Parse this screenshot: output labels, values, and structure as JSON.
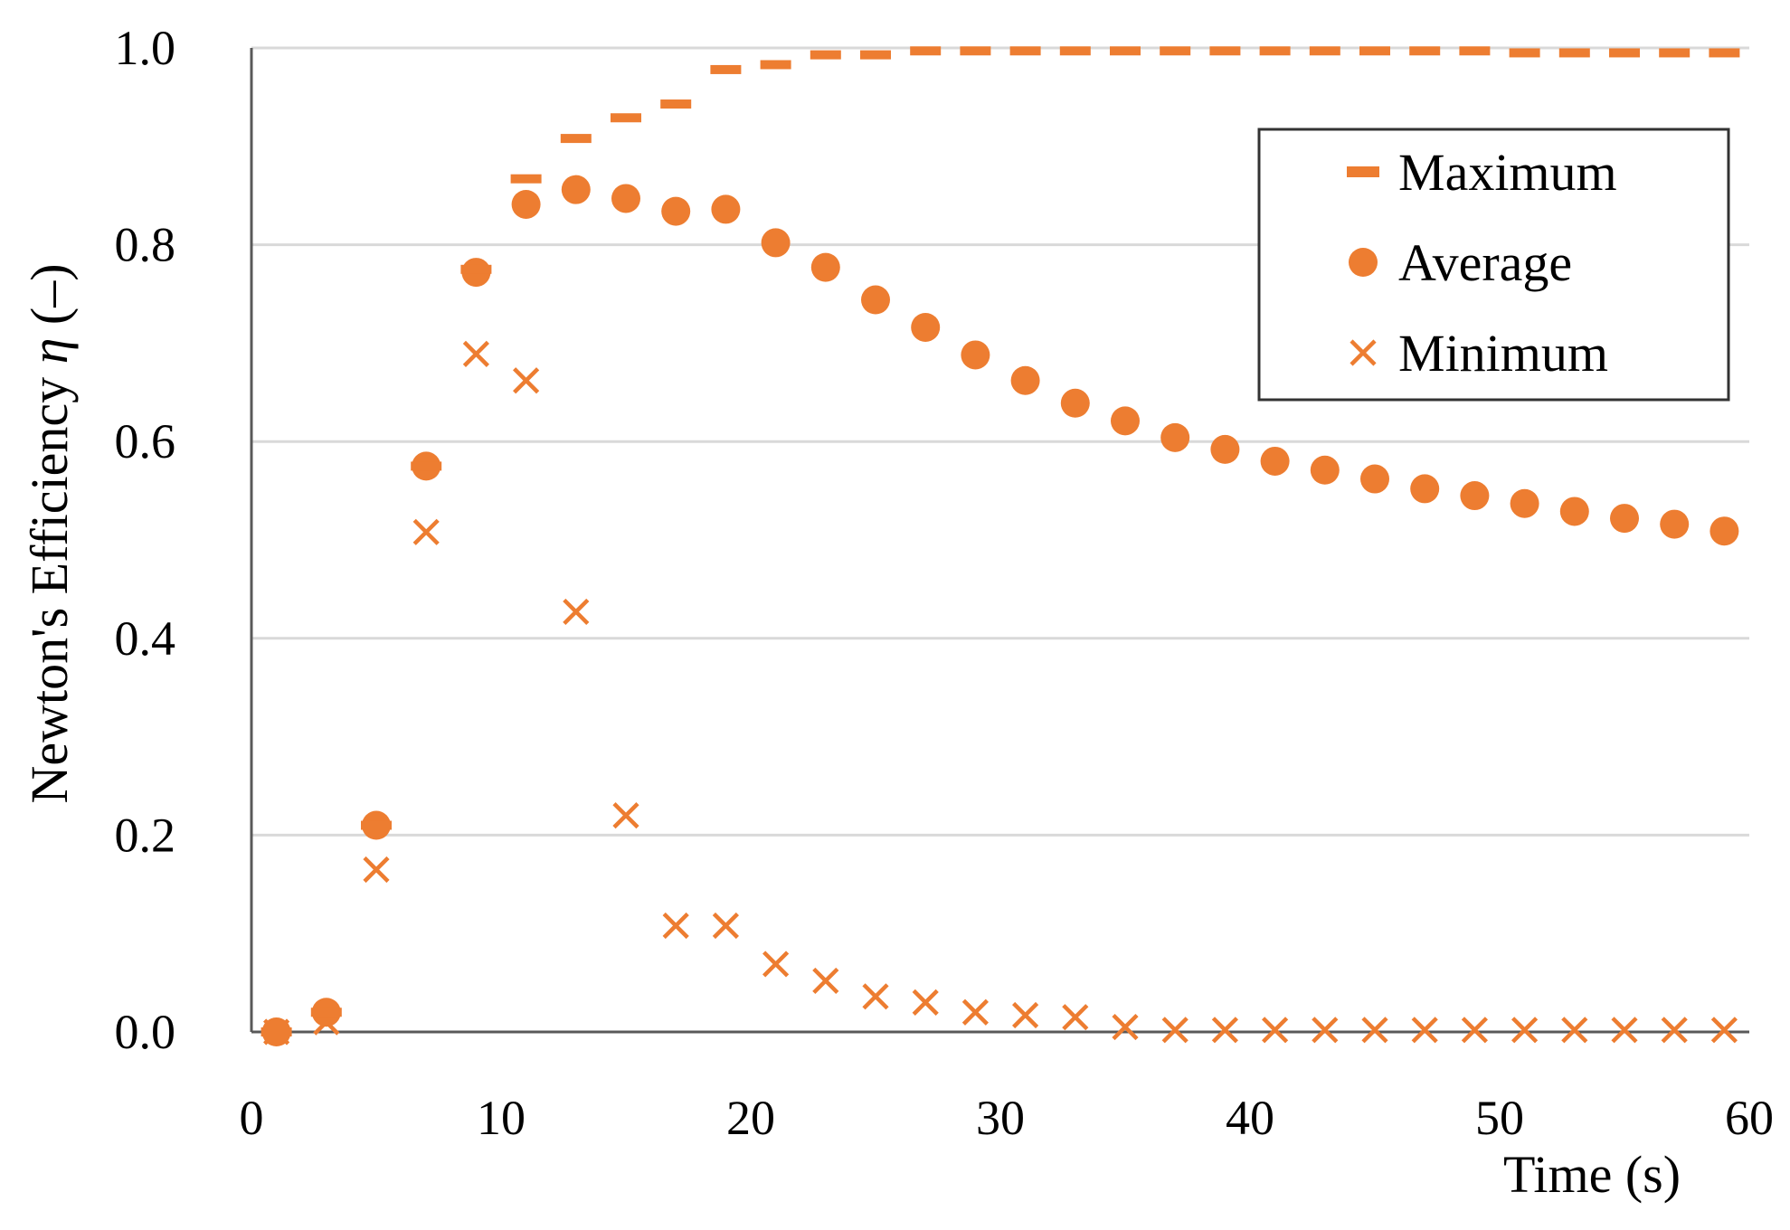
{
  "chart_data": {
    "type": "scatter",
    "title": "",
    "xlabel": "Time (s)",
    "ylabel_prefix": "Newton's Efficiency ",
    "ylabel_symbol": "η",
    "ylabel_suffix": " (–)",
    "xlim": [
      0,
      60
    ],
    "ylim": [
      0,
      1.0
    ],
    "x_ticks": [
      0,
      10,
      20,
      30,
      40,
      50,
      60
    ],
    "x_tick_labels": [
      "0",
      "10",
      "20",
      "30",
      "40",
      "50",
      "60"
    ],
    "y_ticks": [
      0,
      0.2,
      0.4,
      0.6,
      0.8,
      1.0
    ],
    "y_tick_labels": [
      "0.0",
      "0.2",
      "0.4",
      "0.6",
      "0.8",
      "1.0"
    ],
    "grid": "horizontal",
    "legend_position": "top-right",
    "x": [
      1,
      3,
      5,
      7,
      9,
      11,
      13,
      15,
      17,
      19,
      21,
      23,
      25,
      27,
      29,
      31,
      33,
      35,
      37,
      39,
      41,
      43,
      45,
      47,
      49,
      51,
      53,
      55,
      57,
      59
    ],
    "series": [
      {
        "name": "Maximum",
        "marker": "dash",
        "color": "#ED7D31",
        "values": [
          0.0,
          0.02,
          0.21,
          0.575,
          0.775,
          0.867,
          0.908,
          0.929,
          0.943,
          0.978,
          0.983,
          0.993,
          0.993,
          0.997,
          0.997,
          0.997,
          0.997,
          0.997,
          0.997,
          0.997,
          0.997,
          0.997,
          0.997,
          0.997,
          0.997,
          0.995,
          0.995,
          0.995,
          0.995,
          0.995
        ]
      },
      {
        "name": "Average",
        "marker": "circle",
        "color": "#ED7D31",
        "values": [
          0.0,
          0.02,
          0.21,
          0.575,
          0.772,
          0.841,
          0.856,
          0.847,
          0.834,
          0.836,
          0.802,
          0.777,
          0.744,
          0.716,
          0.688,
          0.662,
          0.639,
          0.621,
          0.604,
          0.592,
          0.58,
          0.571,
          0.562,
          0.552,
          0.545,
          0.537,
          0.529,
          0.522,
          0.516,
          0.509
        ]
      },
      {
        "name": "Minimum",
        "marker": "x",
        "color": "#ED7D31",
        "values": [
          0.0,
          0.01,
          0.165,
          0.508,
          0.689,
          0.662,
          0.427,
          0.22,
          0.108,
          0.108,
          0.069,
          0.052,
          0.036,
          0.03,
          0.02,
          0.017,
          0.015,
          0.005,
          0.002,
          0.002,
          0.002,
          0.002,
          0.002,
          0.002,
          0.002,
          0.002,
          0.002,
          0.002,
          0.002,
          0.002
        ]
      }
    ]
  }
}
